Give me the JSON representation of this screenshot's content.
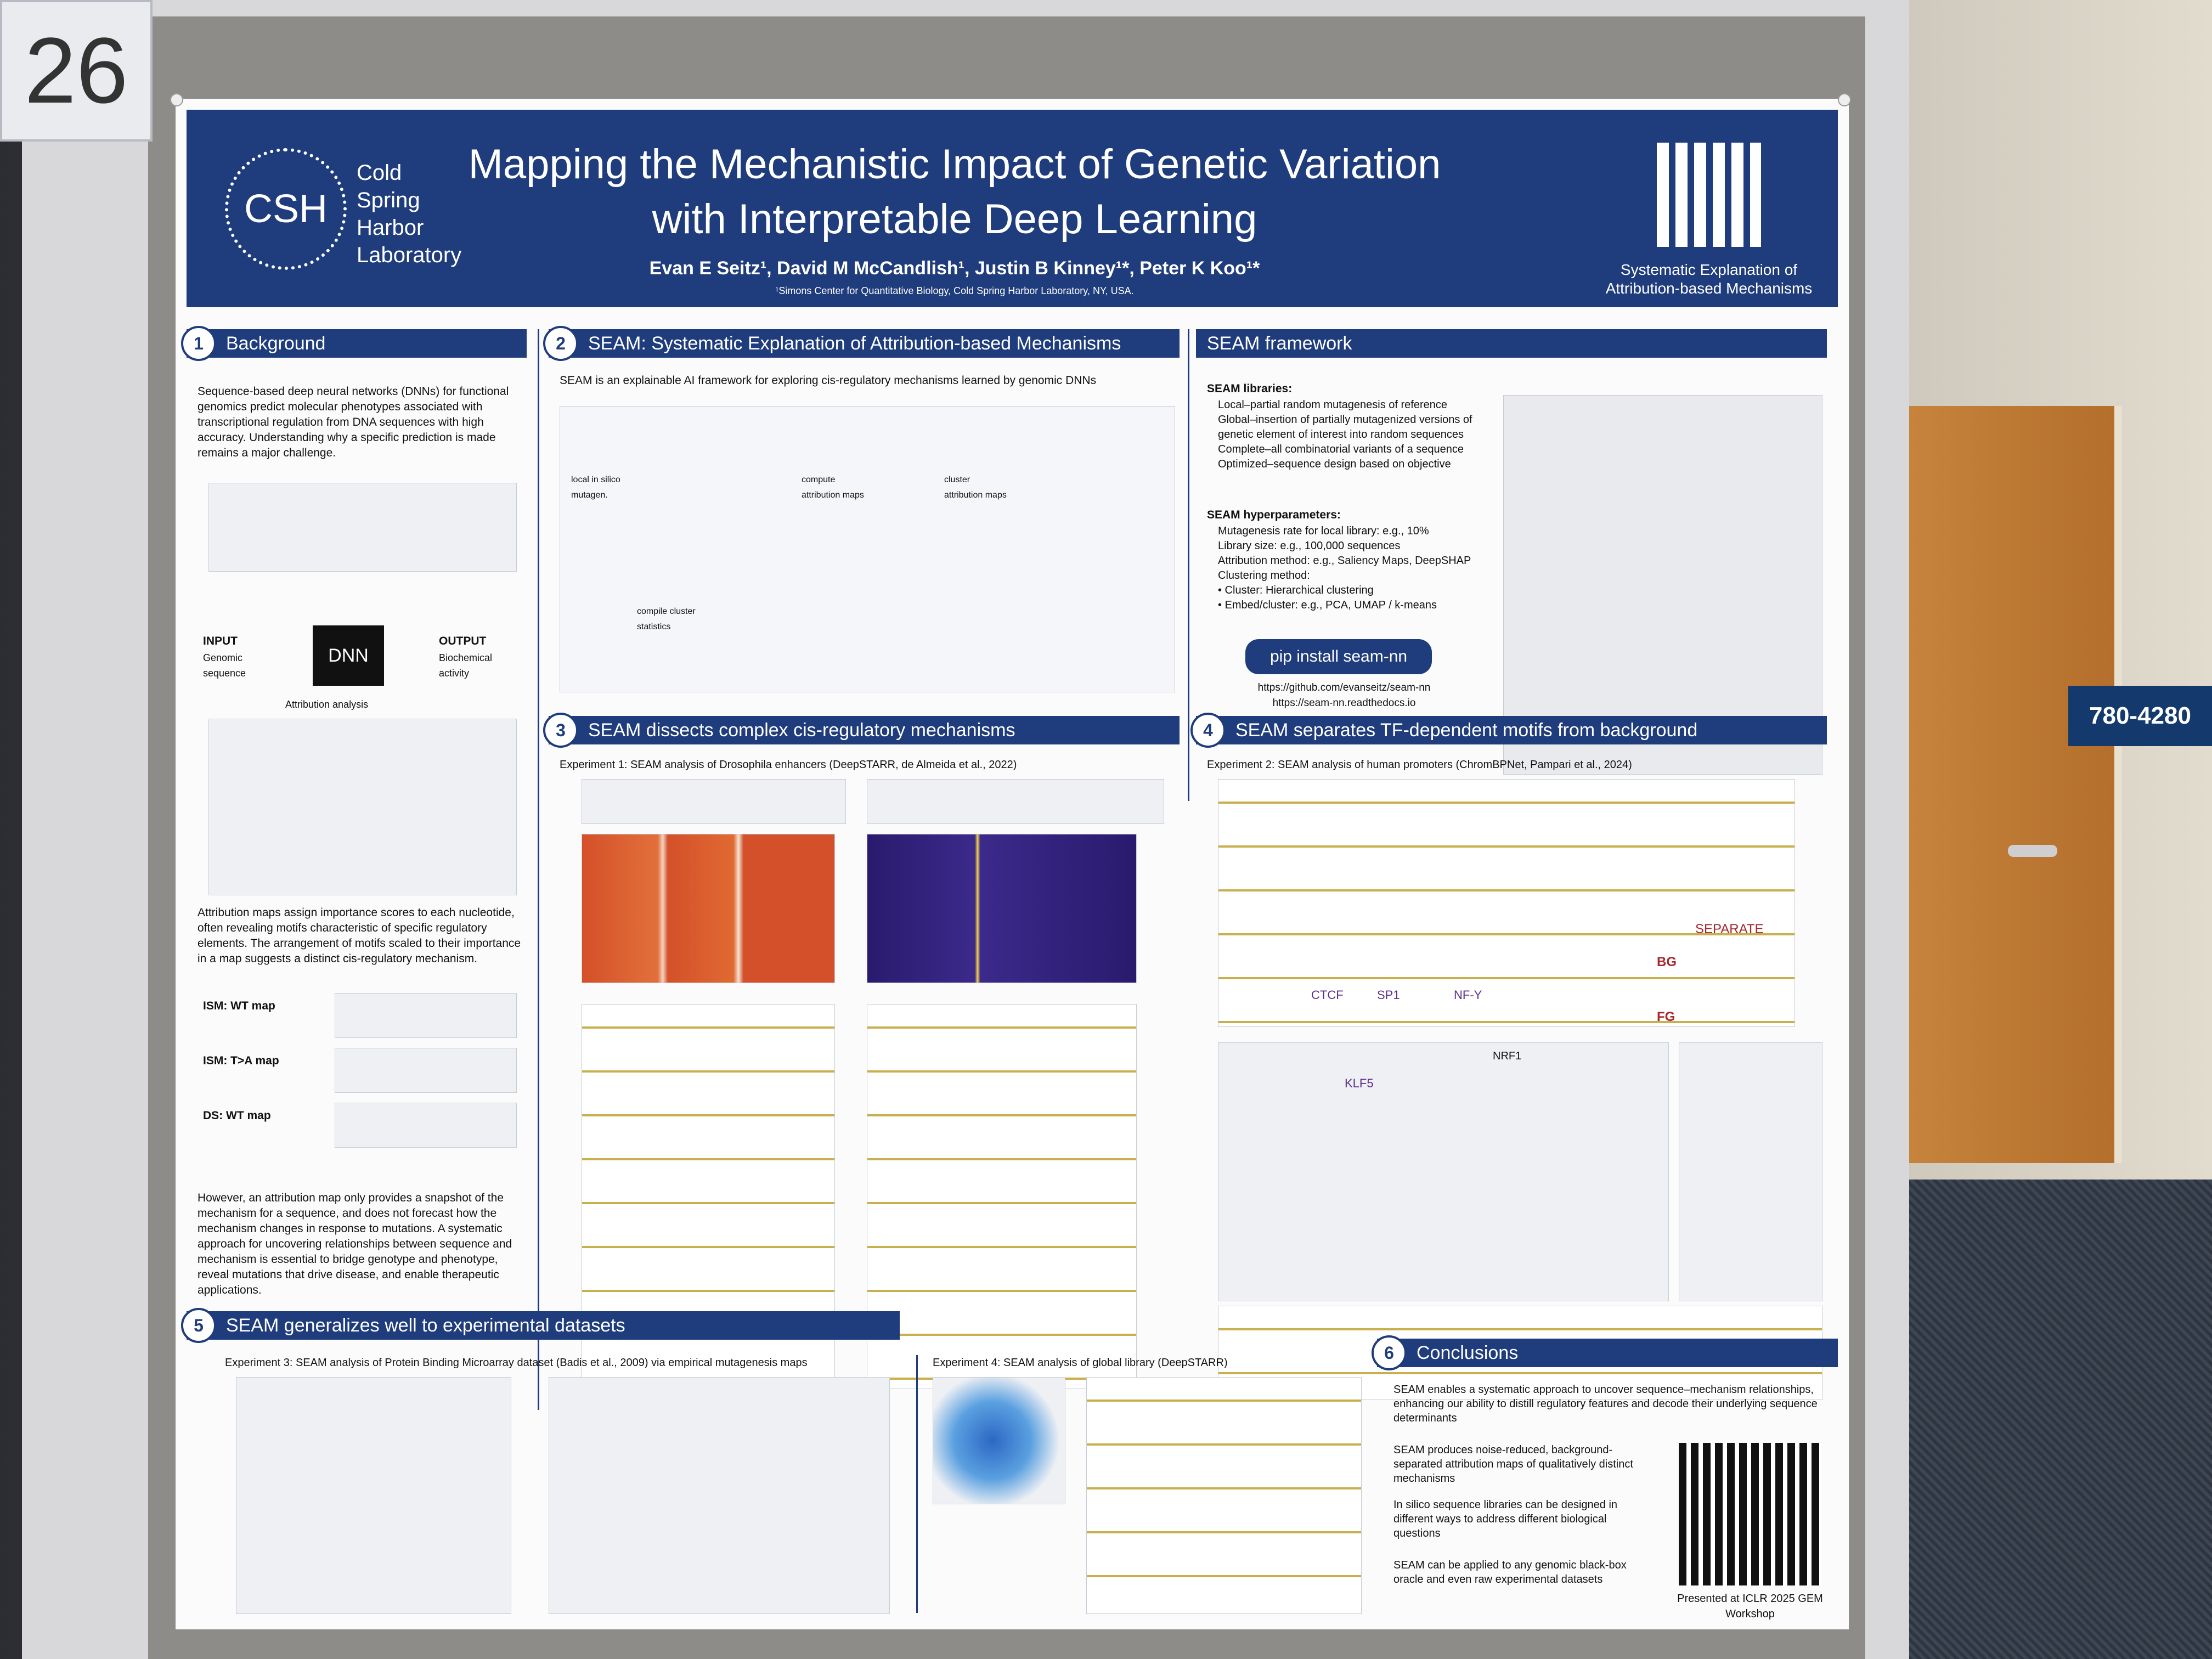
{
  "booth_number": "26",
  "header": {
    "institution_lines": [
      "Cold",
      "Spring",
      "Harbor",
      "Laboratory"
    ],
    "institution_mark": "CSH",
    "title_line1": "Mapping the Mechanistic Impact of Genetic Variation",
    "title_line2": "with Interpretable Deep Learning",
    "authors": "Evan E Seitz¹, David M McCandlish¹, Justin B Kinney¹*, Peter K Koo¹*",
    "affiliation": "¹Simons Center for Quantitative Biology, Cold Spring Harbor Laboratory, NY, USA.",
    "logo_caption": "Systematic Explanation of Attribution-based Mechanisms"
  },
  "sections": {
    "s1": {
      "num": "1",
      "title": "Background",
      "intro": "Sequence-based deep neural networks (DNNs) for functional genomics predict molecular phenotypes associated with transcriptional regulation from DNA sequences with high accuracy. Understanding why a specific prediction is made remains a major challenge.",
      "input_label": "INPUT",
      "input_sub": "Genomic sequence",
      "model_label": "DNN",
      "output_label": "OUTPUT",
      "output_sub": "Biochemical activity",
      "attribution_analysis": "Attribution analysis",
      "attribution_text": "Attribution maps assign importance scores to each nucleotide, often revealing motifs characteristic of specific regulatory elements. The arrangement of motifs scaled to their importance in a map suggests a distinct cis-regulatory mechanism.",
      "map_labels": [
        "ISM: WT map",
        "ISM: T>A map",
        "DS: WT map"
      ],
      "closing": "However, an attribution map only provides a snapshot of the mechanism for a sequence, and does not forecast how the mechanism changes in response to mutations. A systematic approach for uncovering relationships between sequence and mechanism is essential to bridge genotype and phenotype, reveal mutations that drive disease, and enable therapeutic applications."
    },
    "s2": {
      "num": "2",
      "title": "SEAM: Systematic Explanation of Attribution-based Mechanisms",
      "intro": "SEAM is an explainable AI framework for exploring cis-regulatory mechanisms learned by genomic DNNs",
      "steps": [
        "local in silico mutagen.",
        "compute attribution maps",
        "cluster attribution maps",
        "compile cluster statistics"
      ]
    },
    "framework": {
      "title": "SEAM framework",
      "libraries_head": "SEAM libraries:",
      "libraries": [
        "Local–partial random mutagenesis of reference",
        "Global–insertion of partially mutagenized versions of genetic element of interest into random sequences",
        "Complete–all combinatorial variants of a sequence",
        "Optimized–sequence design based on objective"
      ],
      "hyper_head": "SEAM hyperparameters:",
      "hyper": [
        "Mutagenesis rate for local library: e.g., 10%",
        "Library size: e.g., 100,000 sequences",
        "Attribution method: e.g., Saliency Maps, DeepSHAP",
        "Clustering method:",
        "• Cluster: Hierarchical clustering",
        "• Embed/cluster: e.g., PCA, UMAP / k-means"
      ],
      "pip": "pip install seam-nn",
      "links": [
        "https://github.com/evanseitz/seam-nn",
        "https://seam-nn.readthedocs.io"
      ]
    },
    "s3": {
      "num": "3",
      "title": "SEAM dissects complex cis-regulatory mechanisms",
      "experiment": "Experiment 1: SEAM analysis of Drosophila enhancers (DeepSTARR, de Almeida et al., 2022)"
    },
    "s4": {
      "num": "4",
      "title": "SEAM separates TF-dependent motifs from background",
      "experiment": "Experiment 2: SEAM analysis of human promoters (ChromBPNet, Pampari et al., 2024)",
      "labels": [
        "SEPARATE",
        "BG",
        "FG",
        "CTCF",
        "SP1",
        "NF-Y",
        "NRF1",
        "KLF5"
      ]
    },
    "s5": {
      "num": "5",
      "title": "SEAM generalizes well to experimental datasets",
      "experiment3": "Experiment 3: SEAM analysis of Protein Binding Microarray dataset (Badis et al., 2009) via empirical mutagenesis maps",
      "experiment4": "Experiment 4: SEAM analysis of global library (DeepSTARR)"
    },
    "s6": {
      "num": "6",
      "title": "Conclusions",
      "points": [
        "SEAM enables a systematic approach to uncover sequence–mechanism relationships, enhancing our ability to distill regulatory features and decode their underlying sequence determinants",
        "SEAM produces noise-reduced, background-separated attribution maps of qualitatively distinct mechanisms",
        "In silico sequence libraries can be designed in different ways to address different biological questions",
        "SEAM can be applied to any genomic black-box oracle and even raw experimental datasets"
      ],
      "presented": "Presented at ICLR 2025 GEM Workshop"
    }
  },
  "scene": {
    "wall_sign": "780-4280"
  }
}
